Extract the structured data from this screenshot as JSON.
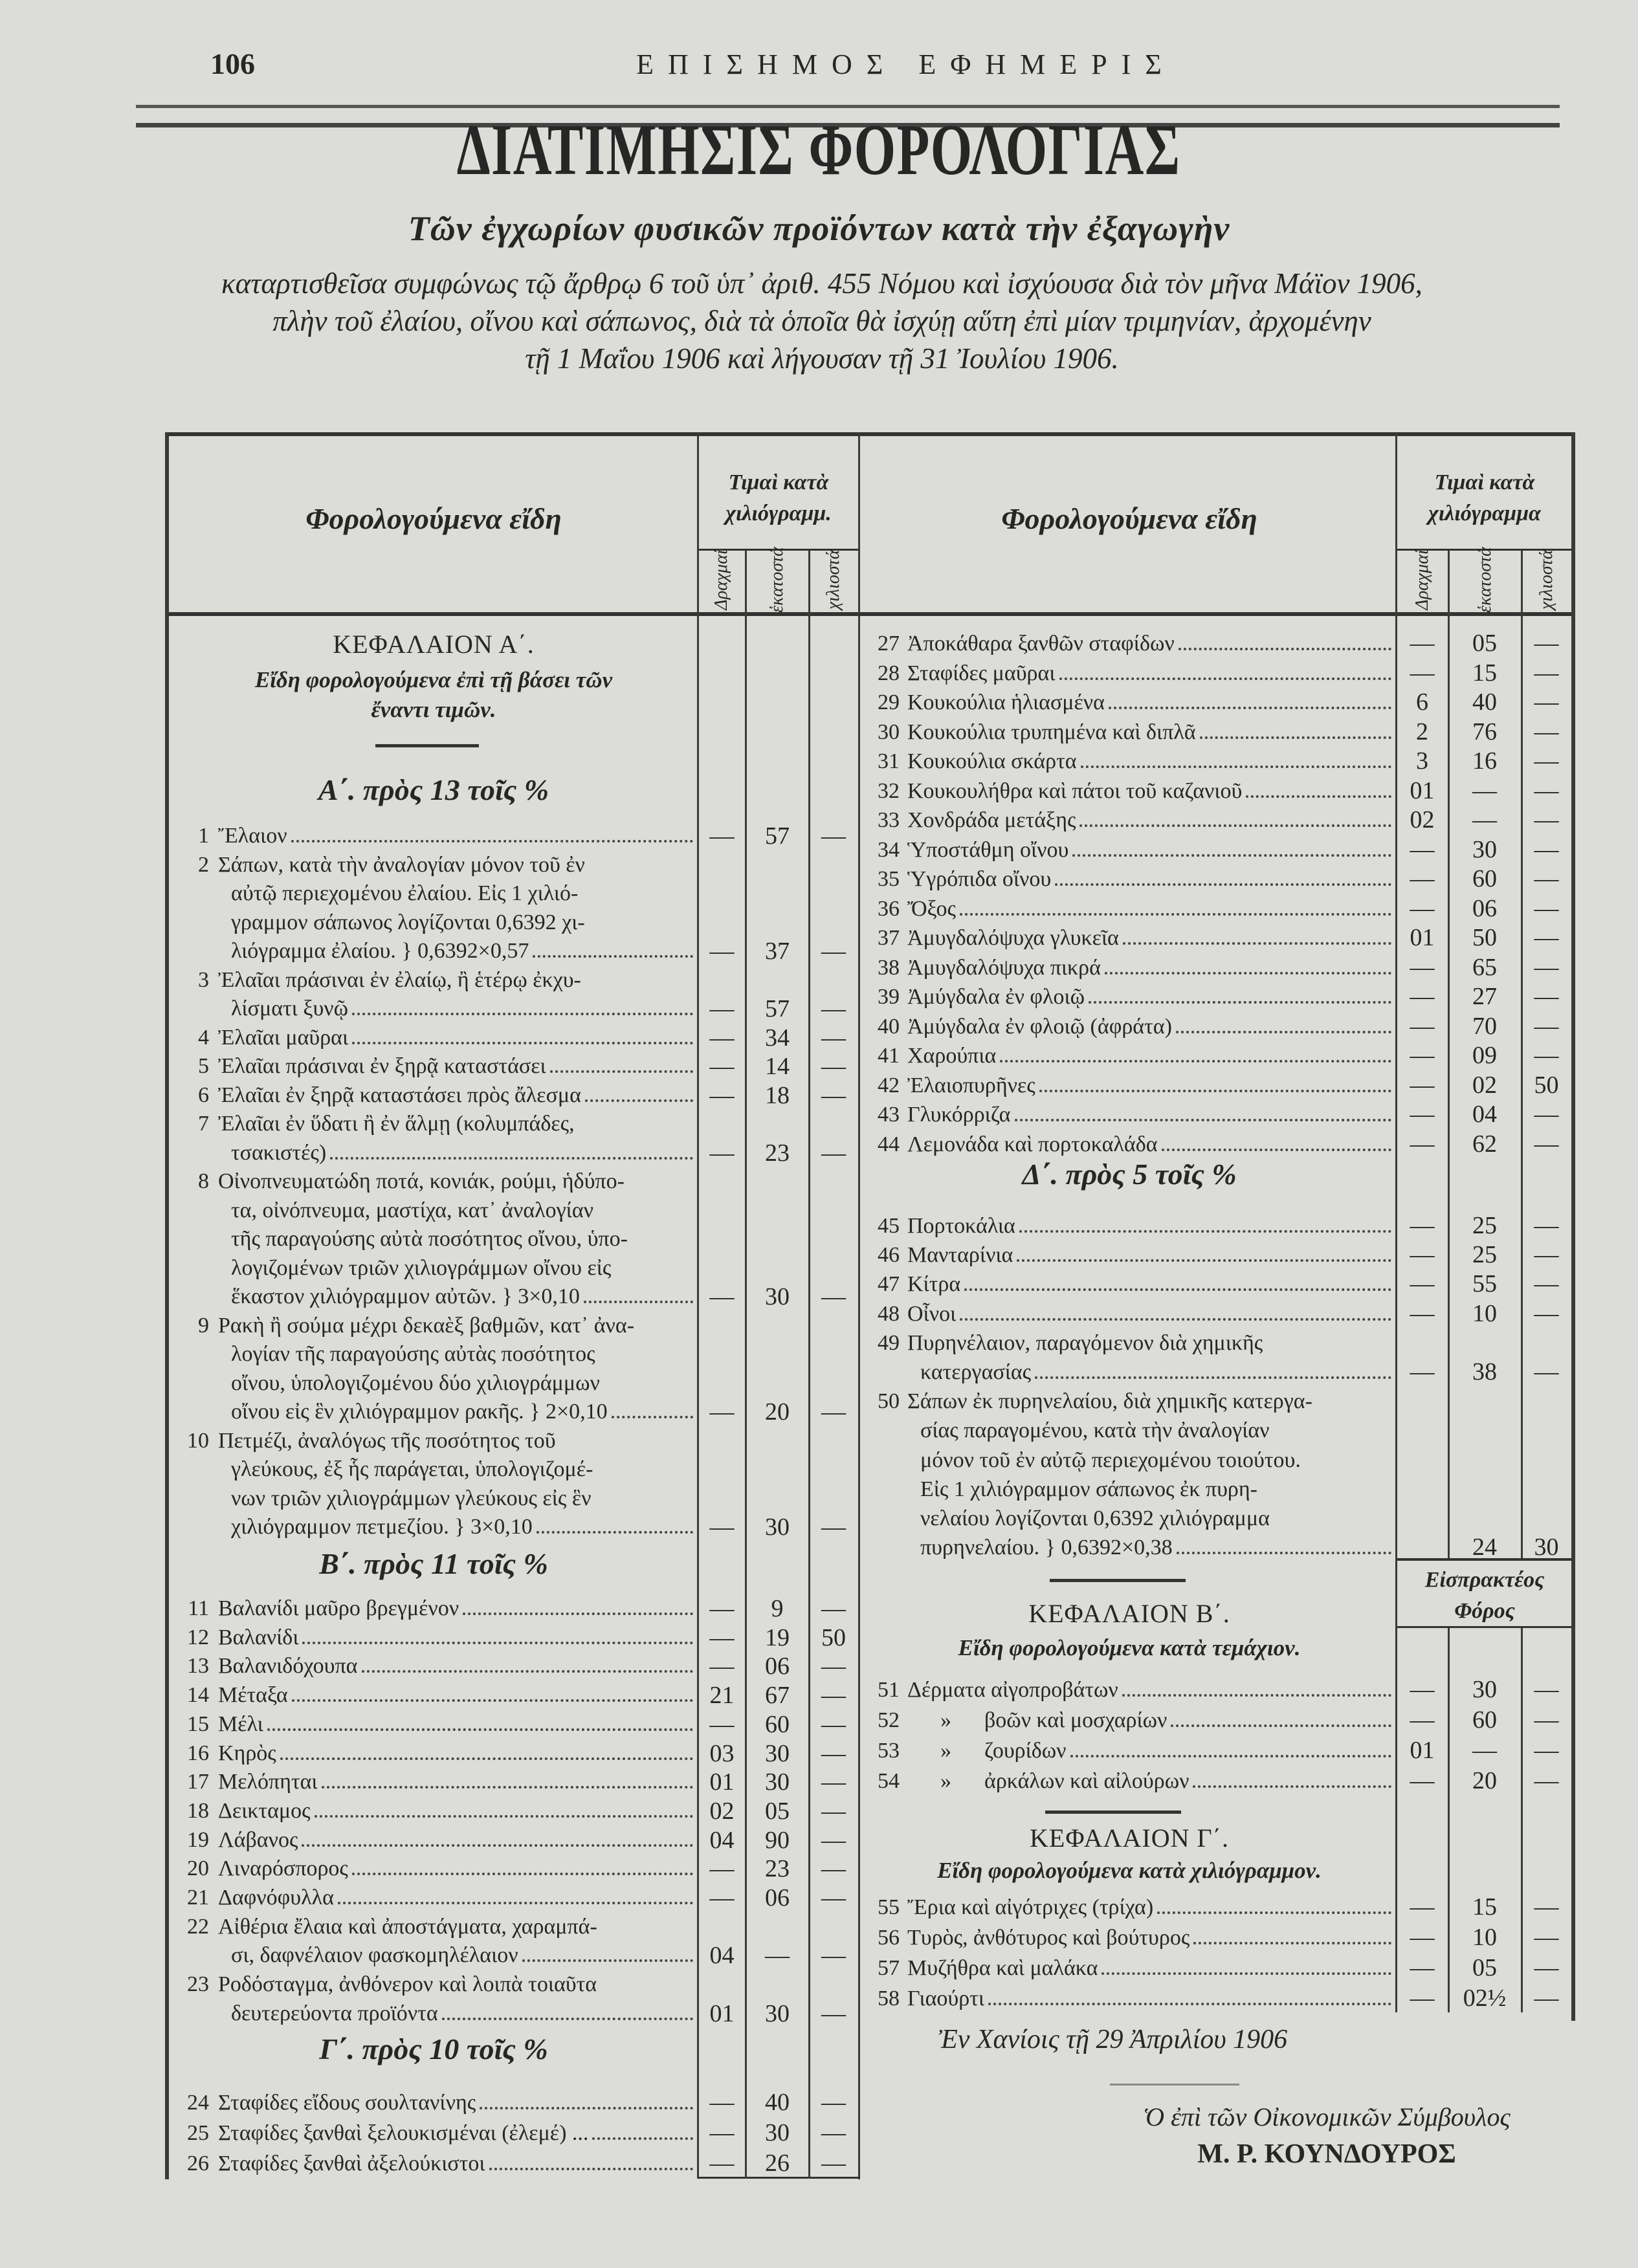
{
  "header": {
    "page_number": "106",
    "running_title": "ΕΠΙΣΗΜΟΣ ΕΦΗΜΕΡΙΣ",
    "title": "ΔΙΑΤΙΜΗΣΙΣ ΦΟΡΟΛΟΓΙΑΣ",
    "subtitle": "Τῶν ἐγχωρίων φυσικῶν προϊόντων κατὰ τὴν ἐξαγωγὴν",
    "intro_lines": [
      "καταρτισθεῖσα συμφώνως τῷ ἄρθρῳ 6 τοῦ ὑπ᾽ ἀριθ. 455 Νόμου καὶ ἰσχύουσα διὰ τὸν μῆνα Μάϊον 1906,",
      "πλὴν τοῦ ἐλαίου, οἴνου καὶ σάπωνος, διὰ τὰ ὁποῖα θὰ ἰσχύῃ αὕτη ἐπὶ μίαν τριμηνίαν, ἀρχομένην",
      "τῇ 1 Μαΐου 1906 καὶ λήγουσαν τῇ 31 Ἰουλίου 1906."
    ]
  },
  "table_header": {
    "items_label": "Φορολογούμενα εἴδη",
    "left_price_label": [
      "Τιμαὶ κατὰ",
      "χιλιόγραμμ."
    ],
    "right_price_label": [
      "Τιμαὶ κατὰ",
      "χιλιόγραμμα"
    ],
    "units": [
      "Δραχμαί",
      "ἑκατοστά",
      "χιλιοστά"
    ],
    "collected_tax_label": [
      "Εἰσπρακτέος",
      "Φόρος"
    ]
  },
  "chapter_a": {
    "title": "ΚΕΦΑΛΑΙΟΝ Α΄.",
    "subtitle": [
      "Εἴδη φορολογούμενα ἐπὶ τῇ βάσει τῶν",
      "ἔναντι τιμῶν."
    ]
  },
  "groups": {
    "a": "Α΄. πρὸς 13 τοῖς %",
    "b": "Β΄. πρὸς 11 τοῖς %",
    "c": "Γ΄. πρὸς 10 τοῖς %",
    "d": "Δ΄. πρὸς 5 τοῖς %"
  },
  "items_a": [
    {
      "num": "1",
      "lines": [
        "Ἔλαιον"
      ],
      "dr": "—",
      "ek": "57",
      "xi": "—"
    },
    {
      "num": "2",
      "lines": [
        "Σάπων, κατὰ τὴν ἀναλογίαν μόνον τοῦ ἐν",
        "αὐτῷ περιεχομένου ἐλαίου. Εἰς 1 χιλιό-",
        "γραμμον σάπωνος λογίζονται 0,6392 χι-",
        "λιόγραμμα ἐλαίου. } 0,6392×0,57"
      ],
      "dr": "—",
      "ek": "37",
      "xi": "—"
    },
    {
      "num": "3",
      "lines": [
        "Ἐλαῖαι πράσιναι ἐν ἐλαίῳ, ἢ ἑτέρῳ ἐκχυ-",
        "λίσματι ξυνῷ"
      ],
      "dr": "—",
      "ek": "57",
      "xi": "—"
    },
    {
      "num": "4",
      "lines": [
        "Ἐλαῖαι μαῦραι"
      ],
      "dr": "—",
      "ek": "34",
      "xi": "—"
    },
    {
      "num": "5",
      "lines": [
        "Ἐλαῖαι πράσιναι ἐν ξηρᾷ καταστάσει"
      ],
      "dr": "—",
      "ek": "14",
      "xi": "—"
    },
    {
      "num": "6",
      "lines": [
        "Ἐλαῖαι ἐν ξηρᾷ καταστάσει πρὸς ἄλεσμα"
      ],
      "dr": "—",
      "ek": "18",
      "xi": "—"
    },
    {
      "num": "7",
      "lines": [
        "Ἐλαῖαι ἐν ὕδατι ἢ ἐν ἅλμῃ (κολυμπάδες,",
        "τσακιστές)"
      ],
      "dr": "—",
      "ek": "23",
      "xi": "—"
    },
    {
      "num": "8",
      "lines": [
        "Οἰνοπνευματώδη ποτά, κονιάκ, ρούμι, ἡδύπο-",
        "τα, οἰνόπνευμα, μαστίχα, κατ᾽ ἀναλογίαν",
        "τῆς παραγούσης αὐτὰ ποσότητος οἴνου, ὑπο-",
        "λογιζομένων τριῶν χιλιογράμμων οἴνου εἰς",
        "ἕκαστον χιλιόγραμμον αὐτῶν. } 3×0,10"
      ],
      "dr": "—",
      "ek": "30",
      "xi": "—"
    },
    {
      "num": "9",
      "lines": [
        "Ρακὴ ἢ σούμα μέχρι δεκαὲξ βαθμῶν, κατ᾽ ἀνα-",
        "λογίαν τῆς παραγούσης αὐτὰς ποσότητος",
        "οἴνου, ὑπολογιζομένου δύο χιλιογράμμων",
        "οἴνου εἰς ἓν χιλιόγραμμον ρακῆς. } 2×0,10"
      ],
      "dr": "—",
      "ek": "20",
      "xi": "—"
    },
    {
      "num": "10",
      "lines": [
        "Πετμέζι, ἀναλόγως τῆς ποσότητος τοῦ",
        "γλεύκους, ἐξ ἧς παράγεται, ὑπολογιζομέ-",
        "νων τριῶν χιλιογράμμων γλεύκους εἰς ἓν",
        "χιλιόγραμμον πετμεζίου. } 3×0,10"
      ],
      "dr": "—",
      "ek": "30",
      "xi": "—"
    }
  ],
  "items_b": [
    {
      "num": "11",
      "lines": [
        "Βαλανίδι μαῦρο βρεγμένον"
      ],
      "dr": "—",
      "ek": "9",
      "xi": "—"
    },
    {
      "num": "12",
      "lines": [
        "Βαλανίδι"
      ],
      "dr": "—",
      "ek": "19",
      "xi": "50"
    },
    {
      "num": "13",
      "lines": [
        "Βαλανιδόχουπα"
      ],
      "dr": "—",
      "ek": "06",
      "xi": "—"
    },
    {
      "num": "14",
      "lines": [
        "Μέταξα"
      ],
      "dr": "21",
      "ek": "67",
      "xi": "—"
    },
    {
      "num": "15",
      "lines": [
        "Μέλι"
      ],
      "dr": "—",
      "ek": "60",
      "xi": "—"
    },
    {
      "num": "16",
      "lines": [
        "Κηρὸς"
      ],
      "dr": "03",
      "ek": "30",
      "xi": "—"
    },
    {
      "num": "17",
      "lines": [
        "Μελόπηται"
      ],
      "dr": "01",
      "ek": "30",
      "xi": "—"
    },
    {
      "num": "18",
      "lines": [
        "Δεικταμος"
      ],
      "dr": "02",
      "ek": "05",
      "xi": "—"
    },
    {
      "num": "19",
      "lines": [
        "Λάβανος"
      ],
      "dr": "04",
      "ek": "90",
      "xi": "—"
    },
    {
      "num": "20",
      "lines": [
        "Λιναρόσπορος"
      ],
      "dr": "—",
      "ek": "23",
      "xi": "—"
    },
    {
      "num": "21",
      "lines": [
        "Δαφνόφυλλα"
      ],
      "dr": "—",
      "ek": "06",
      "xi": "—"
    },
    {
      "num": "22",
      "lines": [
        "Αἰθέρια ἔλαια καὶ ἀποστάγματα, χαραμπά-",
        "σι, δαφνέλαιον φασκομηλέλαιον"
      ],
      "dr": "04",
      "ek": "—",
      "xi": "—"
    },
    {
      "num": "23",
      "lines": [
        "Ροδόσταγμα, ἀνθόνερον καὶ λοιπὰ τοιαῦτα",
        "δευτερεύοντα προϊόντα"
      ],
      "dr": "01",
      "ek": "30",
      "xi": "—"
    }
  ],
  "items_c": [
    {
      "num": "24",
      "lines": [
        "Σταφίδες εἴδους σουλτανίνης"
      ],
      "dr": "—",
      "ek": "40",
      "xi": "—"
    },
    {
      "num": "25",
      "lines": [
        "Σταφίδες ξανθαὶ ξελουκισμέναι (ἐλεμέ) ..."
      ],
      "dr": "—",
      "ek": "30",
      "xi": "—"
    },
    {
      "num": "26",
      "lines": [
        "Σταφίδες ξανθαὶ ἀξελούκιστοι"
      ],
      "dr": "—",
      "ek": "26",
      "xi": "—"
    },
    {
      "num": "27",
      "lines": [
        "Ἀποκάθαρα ξανθῶν σταφίδων"
      ],
      "dr": "—",
      "ek": "05",
      "xi": "—"
    },
    {
      "num": "28",
      "lines": [
        "Σταφίδες μαῦραι"
      ],
      "dr": "—",
      "ek": "15",
      "xi": "—"
    },
    {
      "num": "29",
      "lines": [
        "Κουκούλια ἡλιασμένα"
      ],
      "dr": "6",
      "ek": "40",
      "xi": "—"
    },
    {
      "num": "30",
      "lines": [
        "Κουκούλια τρυπημένα καὶ διπλᾶ"
      ],
      "dr": "2",
      "ek": "76",
      "xi": "—"
    },
    {
      "num": "31",
      "lines": [
        "Κουκούλια σκάρτα"
      ],
      "dr": "3",
      "ek": "16",
      "xi": "—"
    },
    {
      "num": "32",
      "lines": [
        "Κουκουλήθρα καὶ πάτοι τοῦ καζανιοῦ"
      ],
      "dr": "01",
      "ek": "—",
      "xi": "—"
    },
    {
      "num": "33",
      "lines": [
        "Χονδράδα μετάξης"
      ],
      "dr": "02",
      "ek": "—",
      "xi": "—"
    },
    {
      "num": "34",
      "lines": [
        "Ὑποστάθμη οἴνου"
      ],
      "dr": "—",
      "ek": "30",
      "xi": "—"
    },
    {
      "num": "35",
      "lines": [
        "Ὑγρόπιδα οἴνου"
      ],
      "dr": "—",
      "ek": "60",
      "xi": "—"
    },
    {
      "num": "36",
      "lines": [
        "Ὄξος"
      ],
      "dr": "—",
      "ek": "06",
      "xi": "—"
    },
    {
      "num": "37",
      "lines": [
        "Ἀμυγδαλόψυχα γλυκεῖα"
      ],
      "dr": "01",
      "ek": "50",
      "xi": "—"
    },
    {
      "num": "38",
      "lines": [
        "Ἀμυγδαλόψυχα πικρά"
      ],
      "dr": "—",
      "ek": "65",
      "xi": "—"
    },
    {
      "num": "39",
      "lines": [
        "Ἀμύγδαλα ἐν φλοιῷ"
      ],
      "dr": "—",
      "ek": "27",
      "xi": "—"
    },
    {
      "num": "40",
      "lines": [
        "Ἀμύγδαλα ἐν φλοιῷ (ἀφράτα)"
      ],
      "dr": "—",
      "ek": "70",
      "xi": "—"
    },
    {
      "num": "41",
      "lines": [
        "Χαρούπια"
      ],
      "dr": "—",
      "ek": "09",
      "xi": "—"
    },
    {
      "num": "42",
      "lines": [
        "Ἐλαιοπυρῆνες"
      ],
      "dr": "—",
      "ek": "02",
      "xi": "50"
    },
    {
      "num": "43",
      "lines": [
        "Γλυκόρριζα"
      ],
      "dr": "—",
      "ek": "04",
      "xi": "—"
    },
    {
      "num": "44",
      "lines": [
        "Λεμονάδα καὶ πορτοκαλάδα"
      ],
      "dr": "—",
      "ek": "62",
      "xi": "—"
    }
  ],
  "items_d": [
    {
      "num": "45",
      "lines": [
        "Πορτοκάλια"
      ],
      "dr": "—",
      "ek": "25",
      "xi": "—"
    },
    {
      "num": "46",
      "lines": [
        "Μανταρίνια"
      ],
      "dr": "—",
      "ek": "25",
      "xi": "—"
    },
    {
      "num": "47",
      "lines": [
        "Κίτρα"
      ],
      "dr": "—",
      "ek": "55",
      "xi": "—"
    },
    {
      "num": "48",
      "lines": [
        "Οἶνοι"
      ],
      "dr": "—",
      "ek": "10",
      "xi": "—"
    },
    {
      "num": "49",
      "lines": [
        "Πυρηνέλαιον, παραγόμενον διὰ χημικῆς",
        "κατεργασίας"
      ],
      "dr": "—",
      "ek": "38",
      "xi": "—"
    },
    {
      "num": "50",
      "lines": [
        "Σάπων ἐκ πυρηνελαίου, διὰ χημικῆς κατεργα-",
        "σίας παραγομένου, κατὰ τὴν ἀναλογίαν",
        "μόνον τοῦ ἐν αὐτῷ περιεχομένου τοιούτου.",
        "Εἰς 1 χιλιόγραμμον σάπωνος ἐκ πυρη-",
        "νελαίου λογίζονται 0,6392 χιλιόγραμμα",
        "πυρηνελαίου. } 0,6392×0,38"
      ],
      "dr": "",
      "ek": "24",
      "xi": "30"
    }
  ],
  "chapter_b": {
    "title": "ΚΕΦΑΛΑΙΟΝ Β΄.",
    "subtitle": "Εἴδη φορολογούμενα κατὰ τεμάχιον.",
    "items": [
      {
        "num": "51",
        "lines": [
          "Δέρματα αἰγοπροβάτων"
        ],
        "dr": "—",
        "ek": "30",
        "xi": "—"
      },
      {
        "num": "52",
        "lines": [
          "      »      βοῶν καὶ μοσχαρίων"
        ],
        "dr": "—",
        "ek": "60",
        "xi": "—"
      },
      {
        "num": "53",
        "lines": [
          "      »      ζουρίδων"
        ],
        "dr": "01",
        "ek": "—",
        "xi": "—"
      },
      {
        "num": "54",
        "lines": [
          "      »      ἀρκάλων καὶ αἰλούρων"
        ],
        "dr": "—",
        "ek": "20",
        "xi": "—"
      }
    ]
  },
  "chapter_c": {
    "title": "ΚΕΦΑΛΑΙΟΝ Γ΄.",
    "subtitle": "Εἴδη φορολογούμενα κατὰ χιλιόγραμμον.",
    "items": [
      {
        "num": "55",
        "lines": [
          "Ἔρια καὶ αἰγότριχες (τρίχα)"
        ],
        "dr": "—",
        "ek": "15",
        "xi": "—"
      },
      {
        "num": "56",
        "lines": [
          "Τυρὸς, ἀνθότυρος καὶ βούτυρος"
        ],
        "dr": "—",
        "ek": "10",
        "xi": "—"
      },
      {
        "num": "57",
        "lines": [
          "Μυζήθρα καὶ μαλάκα"
        ],
        "dr": "—",
        "ek": "05",
        "xi": "—"
      },
      {
        "num": "58",
        "lines": [
          "Γιαούρτι"
        ],
        "dr": "—",
        "ek": "02½",
        "xi": "—"
      }
    ]
  },
  "footer": {
    "place_date": "Ἐν Χανίοις τῇ 29 Ἀπριλίου 1906",
    "signatory_title": "Ὁ ἐπὶ τῶν Οἰκονομικῶν Σύμβουλος",
    "signatory_name": "Μ. Ρ. ΚΟΥΝΔΟΥΡΟΣ"
  }
}
